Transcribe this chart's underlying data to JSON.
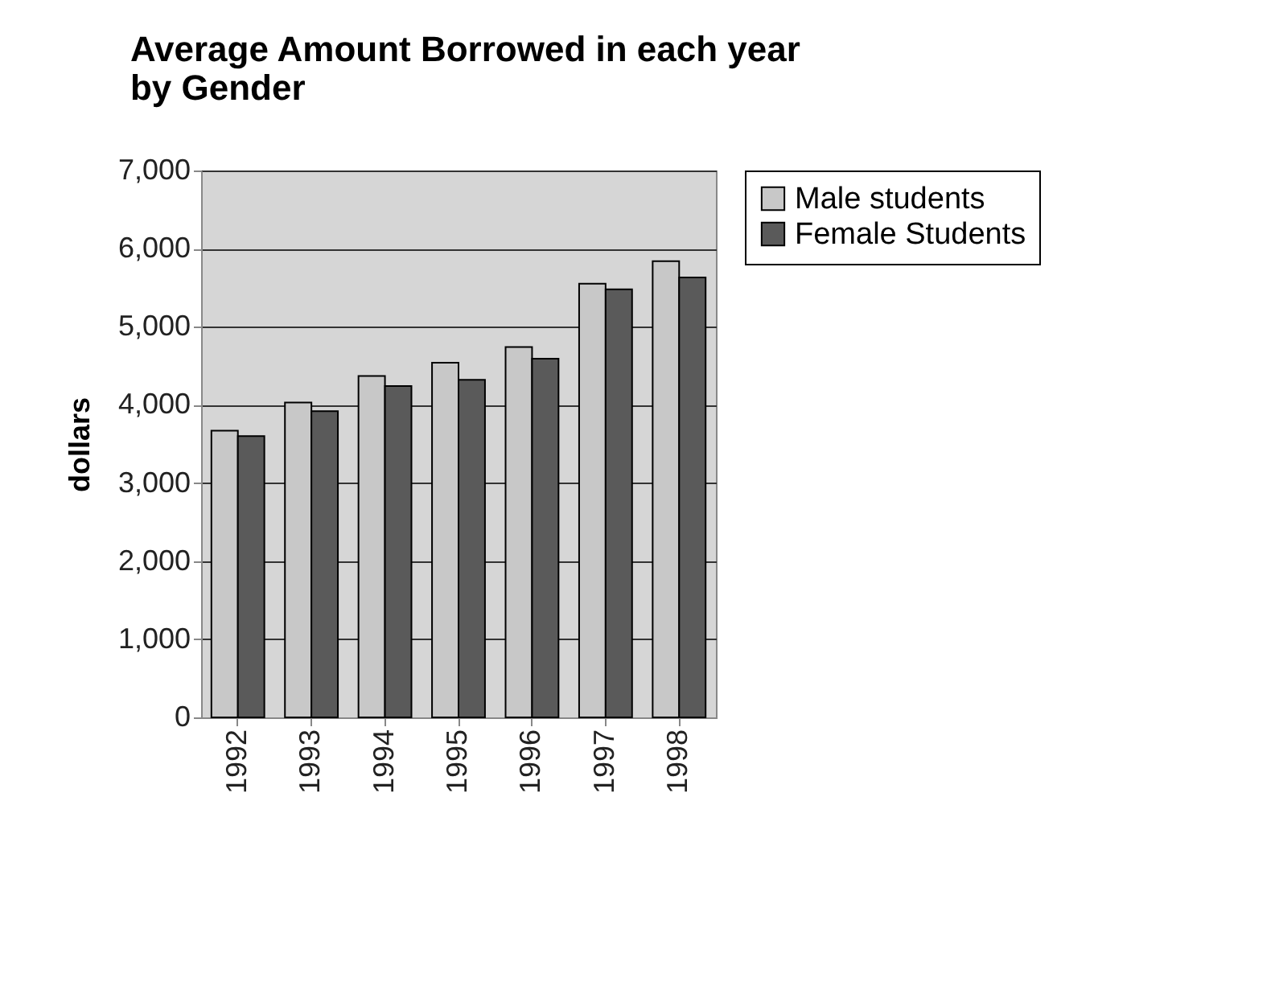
{
  "chart_data": {
    "type": "bar",
    "title": "Average Amount Borrowed in each year by Gender",
    "ylabel": "dollars",
    "categories": [
      "1992",
      "1993",
      "1994",
      "1995",
      "1996",
      "1997",
      "1998"
    ],
    "series": [
      {
        "name": "Male students",
        "color": "#c8c8c8",
        "values": [
          3670,
          4030,
          4370,
          4540,
          4740,
          5550,
          5840
        ]
      },
      {
        "name": "Female Students",
        "color": "#5a5a5a",
        "values": [
          3600,
          3920,
          4240,
          4320,
          4590,
          5480,
          5630
        ]
      }
    ],
    "ylim": [
      0,
      7000
    ],
    "yticks": [
      {
        "value": 0,
        "label": "0"
      },
      {
        "value": 1000,
        "label": "1,000"
      },
      {
        "value": 2000,
        "label": "2,000"
      },
      {
        "value": 3000,
        "label": "3,000"
      },
      {
        "value": 4000,
        "label": "4,000"
      },
      {
        "value": 5000,
        "label": "5,000"
      },
      {
        "value": 6000,
        "label": "6,000"
      },
      {
        "value": 7000,
        "label": "7,000"
      }
    ],
    "grid": "y",
    "legend": "right"
  }
}
